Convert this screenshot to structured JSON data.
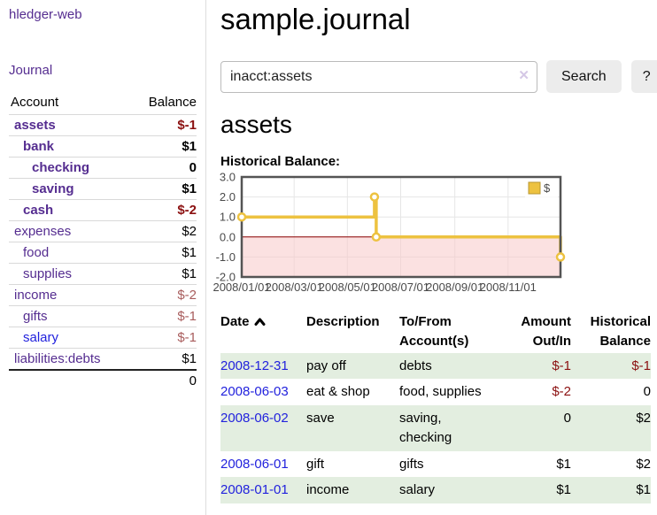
{
  "sidebar": {
    "app_title": "hledger-web",
    "nav": {
      "journal_label": "Journal"
    },
    "accounts_table": {
      "headers": {
        "account": "Account",
        "balance": "Balance"
      },
      "rows": [
        {
          "name": "assets",
          "indent": 0,
          "bold": true,
          "balance": "$-1",
          "negative": true,
          "dim": false,
          "unvisited": false
        },
        {
          "name": "bank",
          "indent": 1,
          "bold": true,
          "balance": "$1",
          "negative": false,
          "dim": false,
          "unvisited": false
        },
        {
          "name": "checking",
          "indent": 2,
          "bold": true,
          "balance": "0",
          "negative": false,
          "dim": false,
          "unvisited": false
        },
        {
          "name": "saving",
          "indent": 2,
          "bold": true,
          "balance": "$1",
          "negative": false,
          "dim": false,
          "unvisited": false
        },
        {
          "name": "cash",
          "indent": 1,
          "bold": true,
          "balance": "$-2",
          "negative": true,
          "dim": false,
          "unvisited": false
        },
        {
          "name": "expenses",
          "indent": 0,
          "bold": false,
          "balance": "$2",
          "negative": false,
          "dim": false,
          "unvisited": false
        },
        {
          "name": "food",
          "indent": 1,
          "bold": false,
          "balance": "$1",
          "negative": false,
          "dim": false,
          "unvisited": false
        },
        {
          "name": "supplies",
          "indent": 1,
          "bold": false,
          "balance": "$1",
          "negative": false,
          "dim": false,
          "unvisited": false
        },
        {
          "name": "income",
          "indent": 0,
          "bold": false,
          "balance": "$-2",
          "negative": true,
          "dim": true,
          "unvisited": false
        },
        {
          "name": "gifts",
          "indent": 1,
          "bold": false,
          "balance": "$-1",
          "negative": true,
          "dim": true,
          "unvisited": false
        },
        {
          "name": "salary",
          "indent": 1,
          "bold": false,
          "balance": "$-1",
          "negative": true,
          "dim": true,
          "unvisited": true
        },
        {
          "name": "liabilities:debts",
          "indent": 0,
          "bold": false,
          "balance": "$1",
          "negative": false,
          "dim": false,
          "unvisited": false
        }
      ],
      "total": "0"
    }
  },
  "header": {
    "title": "sample.journal"
  },
  "search": {
    "value": "inacct:assets",
    "clear_icon": "✕",
    "button_label": "Search",
    "help_label": "?"
  },
  "register": {
    "account_heading": "assets",
    "chart_label": "Historical Balance:"
  },
  "chart_data": {
    "type": "line",
    "step": true,
    "title": "Historical Balance:",
    "series": [
      {
        "name": "$",
        "color": "#edc240",
        "points": [
          [
            "2008-01-01",
            1.0
          ],
          [
            "2008-06-01",
            2.0
          ],
          [
            "2008-06-03",
            0.0
          ],
          [
            "2008-12-31",
            -1.0
          ]
        ]
      }
    ],
    "xlim": [
      "2008-01-01",
      "2008-12-31"
    ],
    "ylim": [
      -2.0,
      3.0
    ],
    "x_ticks": [
      {
        "label": "2008/01/01",
        "date": "2008-01-01"
      },
      {
        "label": "2008/03/01",
        "date": "2008-03-01"
      },
      {
        "label": "2008/05/01",
        "date": "2008-05-01"
      },
      {
        "label": "2008/07/01",
        "date": "2008-07-01"
      },
      {
        "label": "2008/09/01",
        "date": "2008-09-01"
      },
      {
        "label": "2008/11/01",
        "date": "2008-11-01"
      }
    ],
    "y_ticks": [
      3.0,
      2.0,
      1.0,
      0.0,
      -1.0,
      -2.0
    ],
    "grid": true,
    "legend_position": "top-right",
    "legend_label": "$",
    "grid_color": "#e6e6e6",
    "border_color": "#545454",
    "zero_line_color": "#8b0000",
    "negative_region_color": "#f7c8c8"
  },
  "table": {
    "headers": {
      "date": "Date",
      "description": "Description",
      "tofrom": "To/From Account(s)",
      "amount": "Amount Out/In",
      "balance": "Historical Balance"
    },
    "rows": [
      {
        "date": "2008-12-31",
        "description": "pay off",
        "accounts": "debts",
        "amount": "$-1",
        "amount_negative": true,
        "balance": "$-1",
        "balance_negative": true
      },
      {
        "date": "2008-06-03",
        "description": "eat & shop",
        "accounts": "food, supplies",
        "amount": "$-2",
        "amount_negative": true,
        "balance": "0",
        "balance_negative": false
      },
      {
        "date": "2008-06-02",
        "description": "save",
        "accounts": "saving, checking",
        "amount": "0",
        "amount_negative": false,
        "balance": "$2",
        "balance_negative": false
      },
      {
        "date": "2008-06-01",
        "description": "gift",
        "accounts": "gifts",
        "amount": "$1",
        "amount_negative": false,
        "balance": "$2",
        "balance_negative": false
      },
      {
        "date": "2008-01-01",
        "description": "income",
        "accounts": "salary",
        "amount": "$1",
        "amount_negative": false,
        "balance": "$1",
        "balance_negative": false
      }
    ]
  },
  "colors": {
    "link_purple": "#552d90",
    "link_blue": "#2222dd",
    "negative_red": "#8b1010",
    "dim_negative_red": "#a85c5c",
    "row_stripe_green": "#e3eee0",
    "button_gray": "#ececec",
    "chart_series_gold": "#edc240"
  }
}
